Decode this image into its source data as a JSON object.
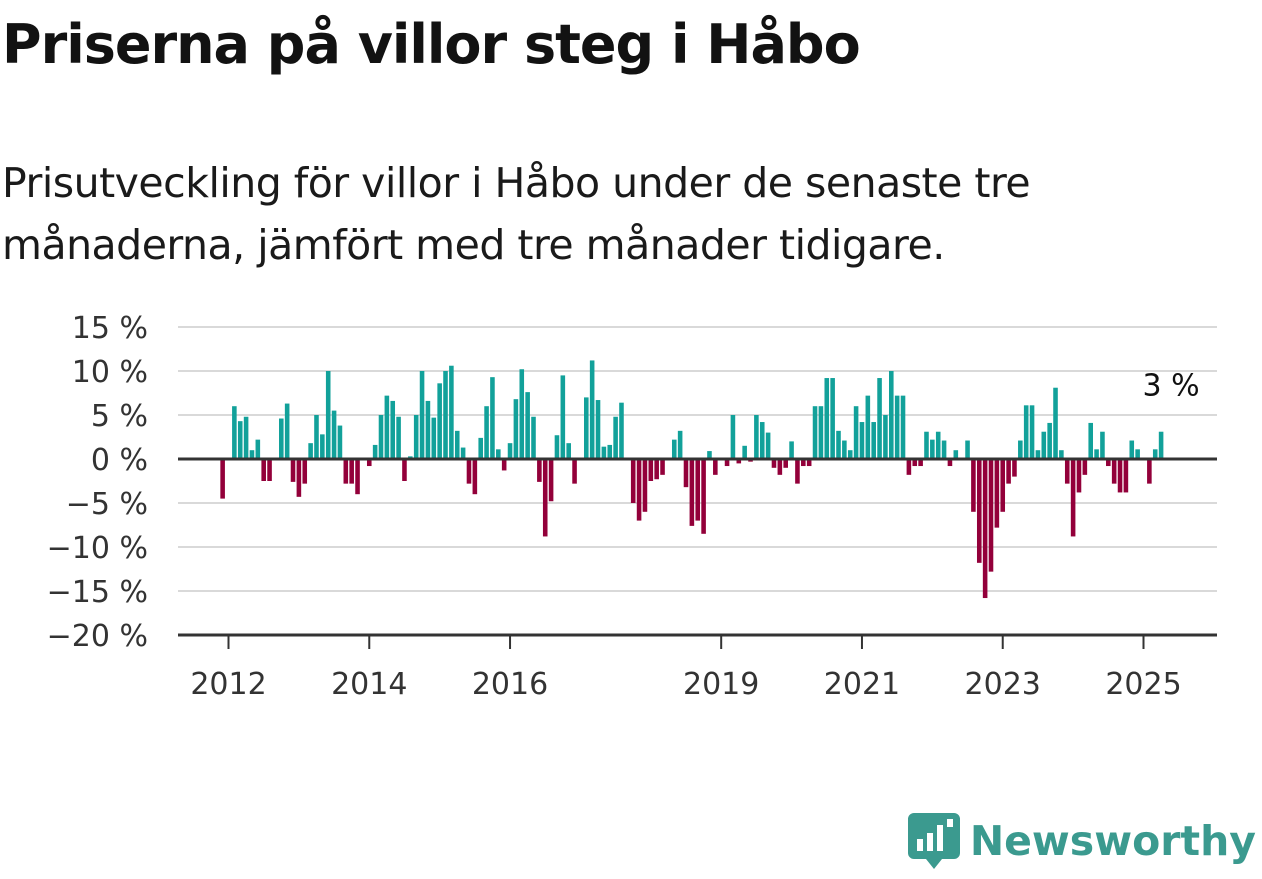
{
  "header": {
    "title": "Priserna på villor steg i Håbo",
    "subtitle": "Prisutveckling för villor i Håbo under de senaste tre månaderna, jämfört med tre månader tidigare."
  },
  "brand": {
    "name": "Newsworthy",
    "icon": "newsworthy-logo-icon"
  },
  "colors": {
    "positive": "#12a19a",
    "negative": "#93003a",
    "grid": "#d9d9d9",
    "axis": "#333333"
  },
  "chart_data": {
    "type": "bar",
    "title": "Priserna på villor steg i Håbo",
    "xlabel": "",
    "ylabel": "",
    "ylim": [
      -20,
      15
    ],
    "y_ticks": [
      15,
      10,
      5,
      0,
      -5,
      -10,
      -15,
      -20
    ],
    "y_tick_labels": [
      "15 %",
      "10 %",
      "5 %",
      "0 %",
      "−5 %",
      "−10 %",
      "−15 %",
      "−20 %"
    ],
    "x_tick_labels": [
      {
        "label": "2012",
        "x": "2012-01"
      },
      {
        "label": "2014",
        "x": "2014-01"
      },
      {
        "label": "2016",
        "x": "2016-01"
      },
      {
        "label": "2019",
        "x": "2019-01"
      },
      {
        "label": "2021",
        "x": "2021-01"
      },
      {
        "label": "2023",
        "x": "2023-01"
      },
      {
        "label": "2025",
        "x": "2025-01"
      }
    ],
    "grid": true,
    "annotation": {
      "text": "3 %",
      "x": "2025-04",
      "y": 3
    },
    "series": [
      {
        "start": "2011-12",
        "frequency": "monthly",
        "values": [
          -4.5,
          0,
          6,
          4.3,
          4.8,
          1,
          2.2,
          -2.5,
          -2.5,
          0,
          4.6,
          6.3,
          -2.6,
          -4.3,
          -2.8,
          1.8,
          5,
          2.8,
          10,
          5.5,
          3.8,
          -2.8,
          -2.8,
          -4,
          0,
          -0.8,
          1.6,
          5,
          7.2,
          6.6,
          4.8,
          -2.5,
          0.3,
          5,
          10,
          6.6,
          4.7,
          8.6,
          10,
          10.6,
          3.2,
          1.3,
          -2.8,
          -4,
          2.4,
          6,
          9.3,
          1.1,
          -1.3,
          1.8,
          6.8,
          10.2,
          7.6,
          4.8,
          -2.6,
          -8.8,
          -4.8,
          2.7,
          9.5,
          1.8,
          -2.8,
          0,
          7,
          11.2,
          6.7,
          1.4,
          1.6,
          4.8,
          6.4,
          0,
          -5,
          -7,
          -6,
          -2.5,
          -2.3,
          -1.8,
          0,
          2.2,
          3.2,
          -3.2,
          -7.6,
          -7,
          -8.5,
          0.9,
          -1.8,
          0,
          -0.8,
          5,
          -0.5,
          1.5,
          -0.3,
          5,
          4.2,
          3,
          -1,
          -1.8,
          -1,
          2,
          -2.8,
          -0.8,
          -0.8,
          6,
          6,
          9.2,
          9.2,
          3.2,
          2.1,
          1,
          6,
          4.2,
          7.2,
          4.2,
          9.2,
          5,
          10,
          7.2,
          7.2,
          -1.8,
          -0.8,
          -0.8,
          3.1,
          2.2,
          3.1,
          2.1,
          -0.8,
          1,
          0,
          2.1,
          -6,
          -11.8,
          -15.8,
          -12.8,
          -7.8,
          -6,
          -2.8,
          -2,
          2.1,
          6.1,
          6.1,
          1,
          3.1,
          4.1,
          8.1,
          1,
          -2.8,
          -8.8,
          -3.8,
          -1.8,
          4.1,
          1.1,
          3.1,
          -0.8,
          -2.8,
          -3.8,
          -3.8,
          2.1,
          1.1,
          0,
          -2.8,
          1.1,
          3.1
        ]
      }
    ]
  }
}
